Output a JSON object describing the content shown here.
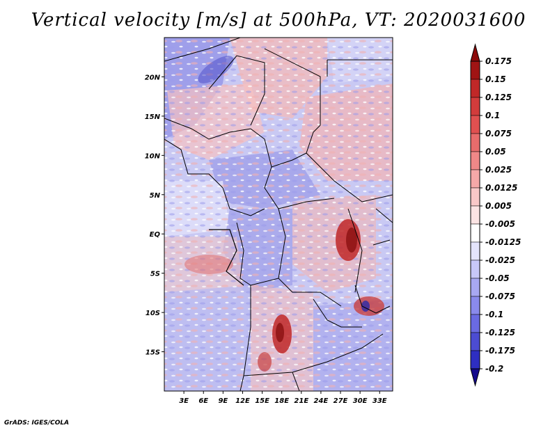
{
  "title": "Vertical velocity [m/s] at 500hPa, VT: 2020031600",
  "credit": "GrADS: IGES/COLA",
  "map": {
    "lon_range": [
      0,
      35
    ],
    "lat_range": [
      -20,
      25
    ],
    "lat_ticks": [
      {
        "value": 20,
        "label": "20N"
      },
      {
        "value": 15,
        "label": "15N"
      },
      {
        "value": 10,
        "label": "10N"
      },
      {
        "value": 5,
        "label": "5N"
      },
      {
        "value": 0,
        "label": "EQ"
      },
      {
        "value": -5,
        "label": "5S"
      },
      {
        "value": -10,
        "label": "10S"
      },
      {
        "value": -15,
        "label": "15S"
      }
    ],
    "lon_ticks": [
      {
        "value": 3,
        "label": "3E"
      },
      {
        "value": 6,
        "label": "6E"
      },
      {
        "value": 9,
        "label": "9E"
      },
      {
        "value": 12,
        "label": "12E"
      },
      {
        "value": 15,
        "label": "15E"
      },
      {
        "value": 18,
        "label": "18E"
      },
      {
        "value": 21,
        "label": "21E"
      },
      {
        "value": 24,
        "label": "24E"
      },
      {
        "value": 27,
        "label": "27E"
      },
      {
        "value": 30,
        "label": "30E"
      },
      {
        "value": 33,
        "label": "33E"
      }
    ]
  },
  "colorbar": {
    "levels": [
      {
        "label": "0.175",
        "color": "#a01414"
      },
      {
        "label": "0.15",
        "color": "#c02828"
      },
      {
        "label": "0.125",
        "color": "#d23c3c"
      },
      {
        "label": "0.1",
        "color": "#e05050"
      },
      {
        "label": "0.075",
        "color": "#e86c6c"
      },
      {
        "label": "0.05",
        "color": "#f08888"
      },
      {
        "label": "0.025",
        "color": "#f5a8a8"
      },
      {
        "label": "0.0125",
        "color": "#f9c8c8"
      },
      {
        "label": "0.005",
        "color": "#fce4e4"
      },
      {
        "label": "-0.005",
        "color": "#ffffff"
      },
      {
        "label": "-0.0125",
        "color": "#e4e4fc"
      },
      {
        "label": "-0.025",
        "color": "#c8c8f8"
      },
      {
        "label": "-0.05",
        "color": "#a8a8f2"
      },
      {
        "label": "-0.075",
        "color": "#8a8aec"
      },
      {
        "label": "-0.1",
        "color": "#6a6ae2"
      },
      {
        "label": "-0.125",
        "color": "#4c4cd2"
      },
      {
        "label": "-0.175",
        "color": "#2e2ec2"
      },
      {
        "label": "-0.2",
        "color": "#1818a8"
      }
    ],
    "top_arrow_color": "#8c0a0a",
    "bottom_arrow_color": "#140a8c"
  }
}
